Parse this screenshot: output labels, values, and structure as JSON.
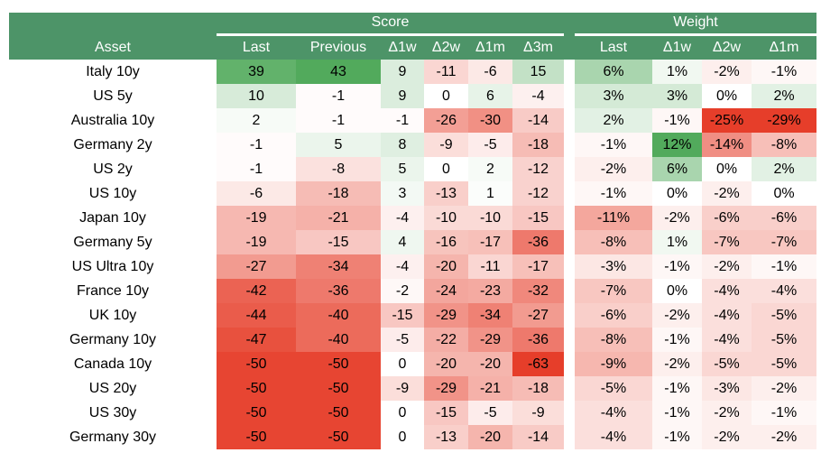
{
  "header": {
    "score_label": "Score",
    "weight_label": "Weight",
    "asset_label": "Asset",
    "score_columns": [
      "Last",
      "Previous",
      "Δ1w",
      "Δ2w",
      "Δ1m",
      "Δ3m"
    ],
    "weight_columns": [
      "Last",
      "Δ1w",
      "Δ2w",
      "Δ1m"
    ]
  },
  "colors": {
    "header_green": "#4d9468",
    "positive_end": "#52aa5c",
    "negative_end": "#e63e2a",
    "midpoint": "#ffffff",
    "header_text": "#ffffff",
    "body_text": "#000000"
  },
  "color_scales": {
    "score": {
      "min": -52,
      "max": 43
    },
    "weight": {
      "min": -24,
      "max": 12
    }
  },
  "chart_data": {
    "type": "heatmap",
    "title": "",
    "sections": [
      "Score",
      "Weight"
    ],
    "score_columns": [
      "Last",
      "Previous",
      "Δ1w",
      "Δ2w",
      "Δ1m",
      "Δ3m"
    ],
    "weight_columns": [
      "Last",
      "Δ1w",
      "Δ2w",
      "Δ1m"
    ],
    "assets": [
      "Italy 10y",
      "US 5y",
      "Australia 10y",
      "Germany 2y",
      "US 2y",
      "US 10y",
      "Japan 10y",
      "Germany 5y",
      "US Ultra 10y",
      "France 10y",
      "UK 10y",
      "Germany 10y",
      "Canada 10y",
      "US 20y",
      "US 30y",
      "Germany 30y"
    ]
  },
  "rows": [
    {
      "asset": "Italy 10y",
      "score": [
        39,
        43,
        9,
        -11,
        -6,
        15
      ],
      "weight": [
        6,
        1,
        -2,
        -1
      ]
    },
    {
      "asset": "US 5y",
      "score": [
        10,
        -1,
        9,
        0,
        6,
        -4
      ],
      "weight": [
        3,
        3,
        0,
        2
      ]
    },
    {
      "asset": "Australia 10y",
      "score": [
        2,
        -1,
        -1,
        -26,
        -30,
        -14
      ],
      "weight": [
        2,
        -1,
        -25,
        -29
      ]
    },
    {
      "asset": "Germany 2y",
      "score": [
        -1,
        5,
        8,
        -9,
        -5,
        -18
      ],
      "weight": [
        -1,
        12,
        -14,
        -8
      ]
    },
    {
      "asset": "US 2y",
      "score": [
        -1,
        -8,
        5,
        0,
        2,
        -12
      ],
      "weight": [
        -2,
        6,
        0,
        2
      ]
    },
    {
      "asset": "US 10y",
      "score": [
        -6,
        -18,
        3,
        -13,
        1,
        -12
      ],
      "weight": [
        -1,
        0,
        -2,
        0
      ]
    },
    {
      "asset": "Japan 10y",
      "score": [
        -19,
        -21,
        -4,
        -10,
        -10,
        -15
      ],
      "weight": [
        -11,
        -2,
        -6,
        -6
      ]
    },
    {
      "asset": "Germany 5y",
      "score": [
        -19,
        -15,
        4,
        -16,
        -17,
        -36
      ],
      "weight": [
        -8,
        1,
        -7,
        -7
      ]
    },
    {
      "asset": "US Ultra 10y",
      "score": [
        -27,
        -34,
        -4,
        -20,
        -11,
        -17
      ],
      "weight": [
        -3,
        -1,
        -2,
        -1
      ]
    },
    {
      "asset": "France 10y",
      "score": [
        -42,
        -36,
        -2,
        -24,
        -23,
        -32
      ],
      "weight": [
        -7,
        0,
        -4,
        -4
      ]
    },
    {
      "asset": "UK 10y",
      "score": [
        -44,
        -40,
        -15,
        -29,
        -34,
        -27
      ],
      "weight": [
        -6,
        -2,
        -4,
        -5
      ]
    },
    {
      "asset": "Germany 10y",
      "score": [
        -47,
        -40,
        -5,
        -22,
        -29,
        -36
      ],
      "weight": [
        -8,
        -1,
        -4,
        -5
      ]
    },
    {
      "asset": "Canada 10y",
      "score": [
        -50,
        -50,
        0,
        -20,
        -20,
        -63
      ],
      "weight": [
        -9,
        -2,
        -5,
        -5
      ]
    },
    {
      "asset": "US 20y",
      "score": [
        -50,
        -50,
        -9,
        -29,
        -21,
        -18
      ],
      "weight": [
        -5,
        -1,
        -3,
        -2
      ]
    },
    {
      "asset": "US 30y",
      "score": [
        -50,
        -50,
        0,
        -15,
        -5,
        -9
      ],
      "weight": [
        -4,
        -1,
        -2,
        -1
      ]
    },
    {
      "asset": "Germany 30y",
      "score": [
        -50,
        -50,
        0,
        -13,
        -20,
        -14
      ],
      "weight": [
        -4,
        -1,
        -2,
        -2
      ]
    }
  ]
}
